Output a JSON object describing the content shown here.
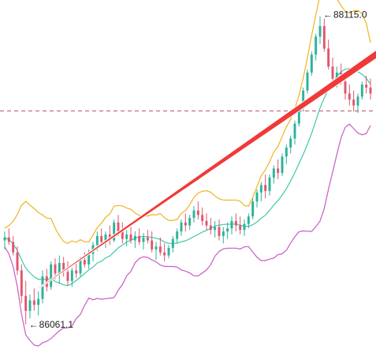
{
  "chart_data": {
    "type": "candlestick",
    "annotations": {
      "high_label": "88115.0",
      "low_label": "86061.1",
      "high_arrow_glyph": "←",
      "low_arrow_glyph": "←"
    },
    "price_extremes": {
      "high": 88115.0,
      "low": 86061.1
    },
    "reference_line": {
      "style": "dashed",
      "level": 87484
    },
    "indicator": {
      "name": "bollinger-bands",
      "upper_color": "#f2b321",
      "middle_color": "#3fc9a8",
      "lower_color": "#c95bc4"
    },
    "trend_arrow": {
      "color": "#f03a3a",
      "from": [
        8,
        86300
      ],
      "to": [
        95,
        87990
      ]
    },
    "candles": [
      [
        0,
        86620,
        86680,
        86560,
        86640
      ],
      [
        1,
        86640,
        86700,
        86590,
        86610
      ],
      [
        2,
        86610,
        86650,
        86520,
        86540
      ],
      [
        3,
        86540,
        86580,
        86390,
        86420
      ],
      [
        4,
        86420,
        86460,
        86200,
        86250
      ],
      [
        5,
        86250,
        86350,
        86060,
        86150
      ],
      [
        6,
        86150,
        86260,
        86100,
        86220
      ],
      [
        7,
        86220,
        86300,
        86150,
        86190
      ],
      [
        8,
        86190,
        86280,
        86120,
        86230
      ],
      [
        9,
        86230,
        86420,
        86200,
        86380
      ],
      [
        10,
        86380,
        86430,
        86280,
        86310
      ],
      [
        11,
        86310,
        86480,
        86290,
        86460
      ],
      [
        12,
        86460,
        86500,
        86360,
        86400
      ],
      [
        13,
        86400,
        86520,
        86330,
        86470
      ],
      [
        14,
        86470,
        86510,
        86380,
        86410
      ],
      [
        15,
        86410,
        86480,
        86320,
        86350
      ],
      [
        16,
        86350,
        86440,
        86310,
        86420
      ],
      [
        17,
        86420,
        86480,
        86370,
        86400
      ],
      [
        18,
        86400,
        86510,
        86380,
        86490
      ],
      [
        19,
        86490,
        86540,
        86440,
        86460
      ],
      [
        20,
        86460,
        86560,
        86430,
        86530
      ],
      [
        21,
        86530,
        86610,
        86480,
        86590
      ],
      [
        22,
        86590,
        86680,
        86550,
        86650
      ],
      [
        23,
        86650,
        86700,
        86580,
        86610
      ],
      [
        24,
        86610,
        86680,
        86570,
        86660
      ],
      [
        25,
        86660,
        86720,
        86590,
        86620
      ],
      [
        26,
        86620,
        86760,
        86610,
        86740
      ],
      [
        27,
        86740,
        86790,
        86650,
        86680
      ],
      [
        28,
        86680,
        86740,
        86600,
        86630
      ],
      [
        29,
        86630,
        86690,
        86580,
        86660
      ],
      [
        30,
        86660,
        86710,
        86600,
        86620
      ],
      [
        31,
        86620,
        86680,
        86570,
        86650
      ],
      [
        32,
        86650,
        86700,
        86590,
        86610
      ],
      [
        33,
        86610,
        86670,
        86560,
        86640
      ],
      [
        34,
        86640,
        86690,
        86600,
        86620
      ],
      [
        35,
        86620,
        86680,
        86540,
        86560
      ],
      [
        36,
        86560,
        86610,
        86490,
        86580
      ],
      [
        37,
        86580,
        86640,
        86520,
        86540
      ],
      [
        38,
        86540,
        86600,
        86480,
        86520
      ],
      [
        39,
        86520,
        86590,
        86500,
        86570
      ],
      [
        40,
        86570,
        86650,
        86540,
        86630
      ],
      [
        41,
        86630,
        86700,
        86600,
        86680
      ],
      [
        42,
        86680,
        86760,
        86650,
        86740
      ],
      [
        43,
        86740,
        86800,
        86680,
        86720
      ],
      [
        44,
        86720,
        86790,
        86690,
        86770
      ],
      [
        45,
        86770,
        86850,
        86740,
        86820
      ],
      [
        46,
        86820,
        86880,
        86760,
        86790
      ],
      [
        47,
        86790,
        86840,
        86720,
        86750
      ],
      [
        48,
        86750,
        86800,
        86690,
        86720
      ],
      [
        49,
        86720,
        86770,
        86660,
        86690
      ],
      [
        50,
        86690,
        86750,
        86640,
        86710
      ],
      [
        51,
        86710,
        86760,
        86620,
        86650
      ],
      [
        52,
        86650,
        86710,
        86600,
        86680
      ],
      [
        53,
        86680,
        86740,
        86630,
        86700
      ],
      [
        54,
        86700,
        86780,
        86660,
        86750
      ],
      [
        55,
        86750,
        86800,
        86680,
        86720
      ],
      [
        56,
        86720,
        86780,
        86660,
        86690
      ],
      [
        57,
        86690,
        86760,
        86650,
        86730
      ],
      [
        58,
        86730,
        86800,
        86700,
        86780
      ],
      [
        59,
        86780,
        86900,
        86760,
        86880
      ],
      [
        60,
        86880,
        86960,
        86840,
        86940
      ],
      [
        61,
        86940,
        87010,
        86880,
        86990
      ],
      [
        62,
        86990,
        87060,
        86900,
        86950
      ],
      [
        63,
        86950,
        87060,
        86920,
        87040
      ],
      [
        64,
        87040,
        87120,
        87000,
        87100
      ],
      [
        65,
        87100,
        87160,
        87030,
        87070
      ],
      [
        66,
        87070,
        87200,
        87050,
        87180
      ],
      [
        67,
        87180,
        87260,
        87130,
        87240
      ],
      [
        68,
        87240,
        87320,
        87200,
        87300
      ],
      [
        69,
        87300,
        87420,
        87260,
        87400
      ],
      [
        70,
        87400,
        87520,
        87380,
        87500
      ],
      [
        71,
        87500,
        87640,
        87480,
        87620
      ],
      [
        72,
        87620,
        87760,
        87600,
        87740
      ],
      [
        73,
        87740,
        87880,
        87720,
        87860
      ],
      [
        74,
        87860,
        88000,
        87820,
        87980
      ],
      [
        75,
        87980,
        88115,
        87930,
        88050
      ],
      [
        76,
        88050,
        88100,
        87880,
        87900
      ],
      [
        77,
        87900,
        87960,
        87760,
        87780
      ],
      [
        78,
        87780,
        87840,
        87660,
        87700
      ],
      [
        79,
        87700,
        87780,
        87640,
        87740
      ],
      [
        80,
        87740,
        87800,
        87660,
        87680
      ],
      [
        81,
        87680,
        87720,
        87560,
        87600
      ],
      [
        82,
        87600,
        87660,
        87520,
        87560
      ],
      [
        83,
        87560,
        87620,
        87480,
        87520
      ],
      [
        84,
        87520,
        87600,
        87470,
        87580
      ],
      [
        85,
        87580,
        87680,
        87560,
        87660
      ],
      [
        86,
        87660,
        87720,
        87600,
        87640
      ],
      [
        87,
        87640,
        87700,
        87560,
        87600
      ]
    ]
  }
}
